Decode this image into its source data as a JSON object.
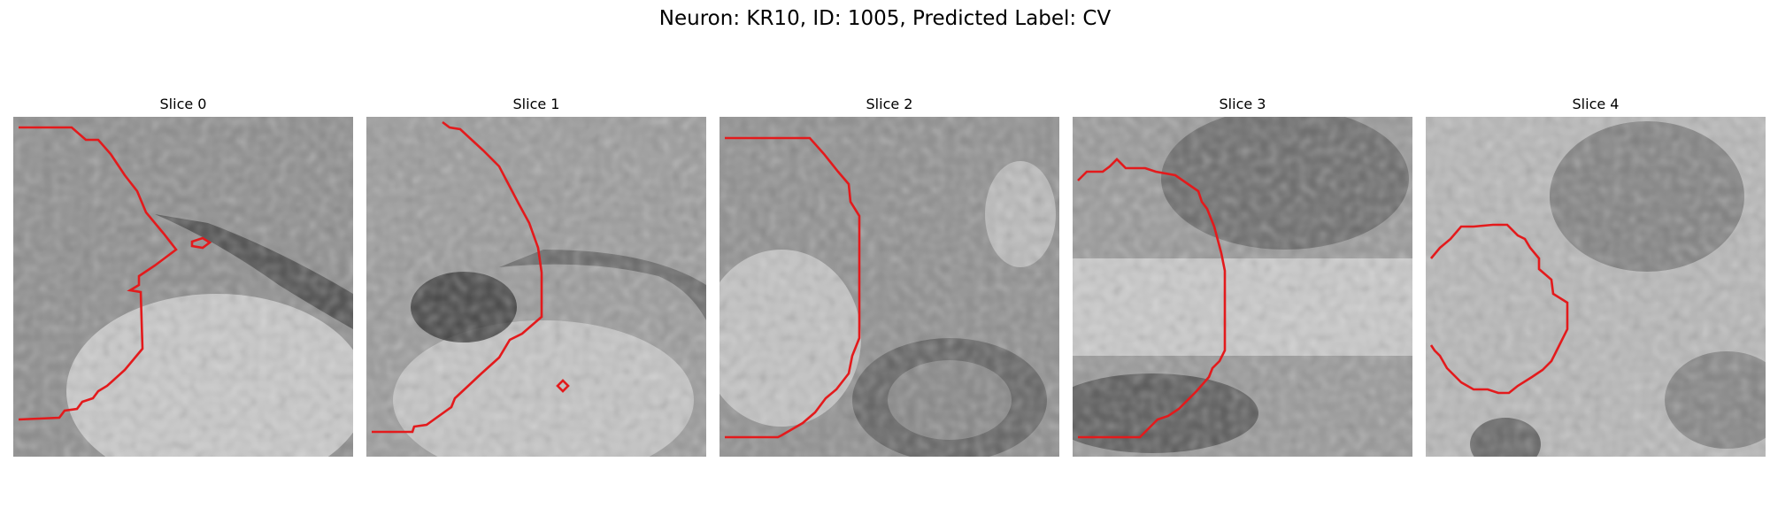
{
  "figure": {
    "title": "Neuron: KR10, ID: 1005, Predicted Label: CV"
  },
  "panels": [
    {
      "title": "Slice 0"
    },
    {
      "title": "Slice 1"
    },
    {
      "title": "Slice 2"
    },
    {
      "title": "Slice 3"
    },
    {
      "title": "Slice 4"
    }
  ],
  "colors": {
    "contour": "#e31a1c",
    "background": "#ffffff"
  }
}
